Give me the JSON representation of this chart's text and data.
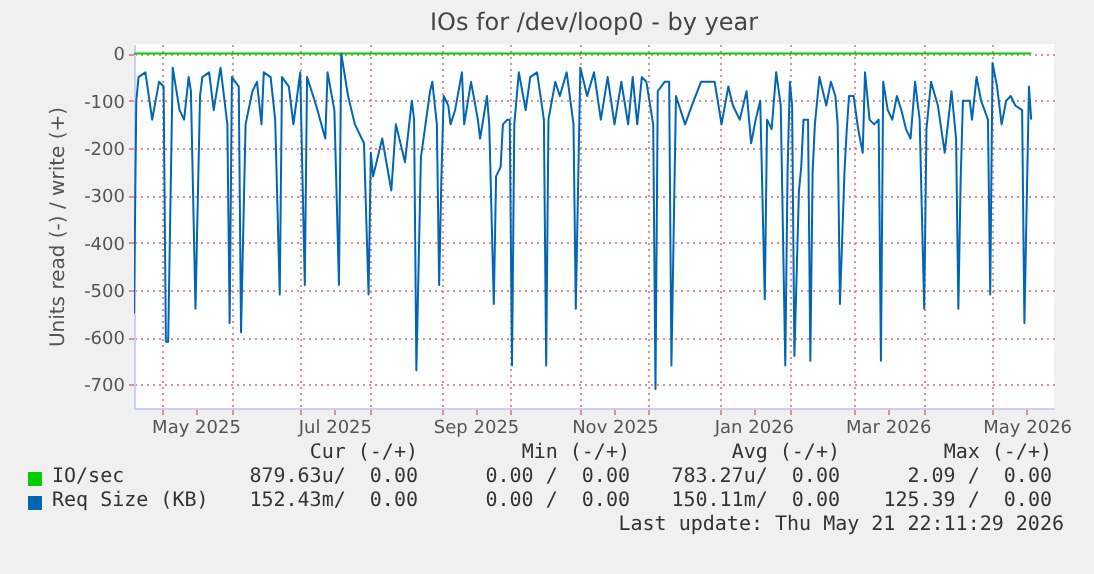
{
  "chart_data": {
    "type": "line",
    "title": "IOs for /dev/loop0 - by year",
    "ylabel": "Units read (-) / write (+)",
    "xlim": [
      "2025-04-19",
      "2026-05-28"
    ],
    "ylim": [
      -750,
      20
    ],
    "xticks": [
      {
        "value": "2025-05-01",
        "label": null
      },
      {
        "value": "2025-05-16",
        "label": "May 2025"
      },
      {
        "value": "2025-06-01",
        "label": null
      },
      {
        "value": "2025-07-01",
        "label": null
      },
      {
        "value": "2025-07-16",
        "label": "Jul 2025"
      },
      {
        "value": "2025-08-01",
        "label": null
      },
      {
        "value": "2025-09-01",
        "label": null
      },
      {
        "value": "2025-09-16",
        "label": "Sep 2025"
      },
      {
        "value": "2025-10-01",
        "label": null
      },
      {
        "value": "2025-11-01",
        "label": null
      },
      {
        "value": "2025-11-16",
        "label": "Nov 2025"
      },
      {
        "value": "2025-12-01",
        "label": null
      },
      {
        "value": "2026-01-01",
        "label": null
      },
      {
        "value": "2026-01-16",
        "label": "Jan 2026"
      },
      {
        "value": "2026-02-01",
        "label": null
      },
      {
        "value": "2026-03-01",
        "label": null
      },
      {
        "value": "2026-03-16",
        "label": "Mar 2026"
      },
      {
        "value": "2026-04-01",
        "label": null
      },
      {
        "value": "2026-05-01",
        "label": null
      },
      {
        "value": "2026-05-16",
        "label": "May 2026"
      }
    ],
    "yticks": [
      -700,
      -600,
      -500,
      -400,
      -300,
      -200,
      -100,
      0
    ],
    "grid": true,
    "legend": "bottom",
    "annotations": [
      "Cur (-/+)",
      "Min (-/+)",
      "Avg (-/+)",
      "Max (-/+)",
      "879.63u/  0.00",
      "0.00 /  0.00",
      "783.27u/  0.00",
      "2.09 /  0.00",
      "152.43m/  0.00",
      "0.00 /  0.00",
      "150.11m/  0.00",
      "125.39 /  0.00",
      "Last update: Thu May 21 22:11:29 2026"
    ],
    "series": [
      {
        "name": "IO/sec",
        "color": "#00cc00",
        "x": [
          "2025-04-19",
          "2026-05-18"
        ],
        "values": [
          0,
          0
        ]
      },
      {
        "name": "Req Size (KB)",
        "color": "#0066b3",
        "x": [
          "2025-04-19",
          "2025-04-20",
          "2025-04-21",
          "2025-04-24",
          "2025-04-27",
          "2025-04-30",
          "2025-05-02",
          "2025-05-03",
          "2025-05-04",
          "2025-05-06",
          "2025-05-09",
          "2025-05-11",
          "2025-05-13",
          "2025-05-14",
          "2025-05-16",
          "2025-05-18",
          "2025-05-19",
          "2025-05-22",
          "2025-05-24",
          "2025-05-27",
          "2025-05-30",
          "2025-05-31",
          "2025-06-01",
          "2025-06-04",
          "2025-06-05",
          "2025-06-07",
          "2025-06-10",
          "2025-06-12",
          "2025-06-14",
          "2025-06-15",
          "2025-06-18",
          "2025-06-20",
          "2025-06-22",
          "2025-06-23",
          "2025-06-26",
          "2025-06-28",
          "2025-07-01",
          "2025-07-03",
          "2025-07-04",
          "2025-07-08",
          "2025-07-12",
          "2025-07-13",
          "2025-07-16",
          "2025-07-18",
          "2025-07-19",
          "2025-07-22",
          "2025-07-25",
          "2025-07-29",
          "2025-07-31",
          "2025-08-01",
          "2025-08-02",
          "2025-08-06",
          "2025-08-10",
          "2025-08-12",
          "2025-08-16",
          "2025-08-19",
          "2025-08-20",
          "2025-08-21",
          "2025-08-23",
          "2025-08-27",
          "2025-08-28",
          "2025-08-30",
          "2025-08-31",
          "2025-09-01",
          "2025-09-02",
          "2025-09-04",
          "2025-09-05",
          "2025-09-07",
          "2025-09-10",
          "2025-09-11",
          "2025-09-14",
          "2025-09-17",
          "2025-09-18",
          "2025-09-21",
          "2025-09-22",
          "2025-09-24",
          "2025-09-25",
          "2025-09-27",
          "2025-09-28",
          "2025-09-30",
          "2025-10-01",
          "2025-10-02",
          "2025-10-03",
          "2025-10-05",
          "2025-10-08",
          "2025-10-10",
          "2025-10-13",
          "2025-10-16",
          "2025-10-17",
          "2025-10-18",
          "2025-10-21",
          "2025-10-23",
          "2025-10-26",
          "2025-10-29",
          "2025-10-30",
          "2025-11-01",
          "2025-11-04",
          "2025-11-07",
          "2025-11-10",
          "2025-11-13",
          "2025-11-16",
          "2025-11-19",
          "2025-11-22",
          "2025-11-24",
          "2025-11-26",
          "2025-11-28",
          "2025-11-30",
          "2025-12-03",
          "2025-12-04",
          "2025-12-05",
          "2025-12-08",
          "2025-12-10",
          "2025-12-11",
          "2025-12-13",
          "2025-12-17",
          "2025-12-20",
          "2025-12-24",
          "2025-12-30",
          "2026-01-02",
          "2026-01-05",
          "2026-01-07",
          "2026-01-10",
          "2026-01-13",
          "2026-01-15",
          "2026-01-17",
          "2026-01-19",
          "2026-01-21",
          "2026-01-22",
          "2026-01-24",
          "2026-01-26",
          "2026-01-28",
          "2026-01-30",
          "2026-01-31",
          "2026-02-01",
          "2026-02-02",
          "2026-02-03",
          "2026-02-05",
          "2026-02-06",
          "2026-02-07",
          "2026-02-09",
          "2026-02-10",
          "2026-02-11",
          "2026-02-12",
          "2026-02-14",
          "2026-02-17",
          "2026-02-19",
          "2026-02-21",
          "2026-02-22",
          "2026-02-23",
          "2026-02-25",
          "2026-02-26",
          "2026-02-27",
          "2026-03-01",
          "2026-03-03",
          "2026-03-05",
          "2026-03-06",
          "2026-03-08",
          "2026-03-10",
          "2026-03-12",
          "2026-03-13",
          "2026-03-14",
          "2026-03-16",
          "2026-03-18",
          "2026-03-20",
          "2026-03-22",
          "2026-03-24",
          "2026-03-26",
          "2026-03-28",
          "2026-03-30",
          "2026-04-01",
          "2026-04-02",
          "2026-04-04",
          "2026-04-07",
          "2026-04-10",
          "2026-04-13",
          "2026-04-15",
          "2026-04-16",
          "2026-04-17",
          "2026-04-18",
          "2026-04-21",
          "2026-04-22",
          "2026-04-24",
          "2026-04-26",
          "2026-04-29",
          "2026-04-30",
          "2026-05-01",
          "2026-05-03",
          "2026-05-05",
          "2026-05-07",
          "2026-05-09",
          "2026-05-11",
          "2026-05-14",
          "2026-05-15",
          "2026-05-17",
          "2026-05-18"
        ],
        "values": [
          -550,
          -100,
          -50,
          -40,
          -140,
          -60,
          -70,
          -610,
          -610,
          -30,
          -120,
          -140,
          -50,
          -80,
          -540,
          -90,
          -50,
          -40,
          -120,
          -30,
          -150,
          -570,
          -50,
          -70,
          -590,
          -150,
          -80,
          -60,
          -150,
          -40,
          -50,
          -140,
          -510,
          -50,
          -70,
          -150,
          -40,
          -490,
          -50,
          -110,
          -180,
          -40,
          -120,
          -490,
          0,
          -90,
          -150,
          -190,
          -510,
          -210,
          -260,
          -180,
          -290,
          -150,
          -230,
          -100,
          -140,
          -670,
          -220,
          -80,
          -60,
          -150,
          -490,
          -260,
          -90,
          -110,
          -150,
          -120,
          -40,
          -150,
          -60,
          -140,
          -180,
          -90,
          -150,
          -530,
          -260,
          -240,
          -150,
          -140,
          -140,
          -660,
          -150,
          -40,
          -120,
          -50,
          -40,
          -140,
          -660,
          -140,
          -60,
          -90,
          -40,
          -150,
          -540,
          -30,
          -90,
          -40,
          -140,
          -50,
          -150,
          -60,
          -150,
          -50,
          -150,
          -50,
          -60,
          -150,
          -710,
          -80,
          -60,
          -60,
          -660,
          -90,
          -150,
          -110,
          -60,
          -60,
          -150,
          -70,
          -110,
          -140,
          -80,
          -190,
          -140,
          -100,
          -520,
          -140,
          -160,
          -40,
          -110,
          -660,
          -250,
          -60,
          -110,
          -640,
          -290,
          -240,
          -140,
          -140,
          -650,
          -250,
          -150,
          -50,
          -110,
          -60,
          -90,
          -150,
          -530,
          -250,
          -160,
          -90,
          -90,
          -160,
          -210,
          -40,
          -140,
          -150,
          -140,
          -650,
          -60,
          -120,
          -140,
          -90,
          -120,
          -160,
          -180,
          -60,
          -140,
          -540,
          -160,
          -60,
          -110,
          -210,
          -80,
          -180,
          -540,
          -270,
          -100,
          -100,
          -140,
          -50,
          -100,
          -140,
          -510,
          -20,
          -70,
          -150,
          -100,
          -90,
          -110,
          -120,
          -570,
          -70,
          -140
        ]
      }
    ]
  }
}
